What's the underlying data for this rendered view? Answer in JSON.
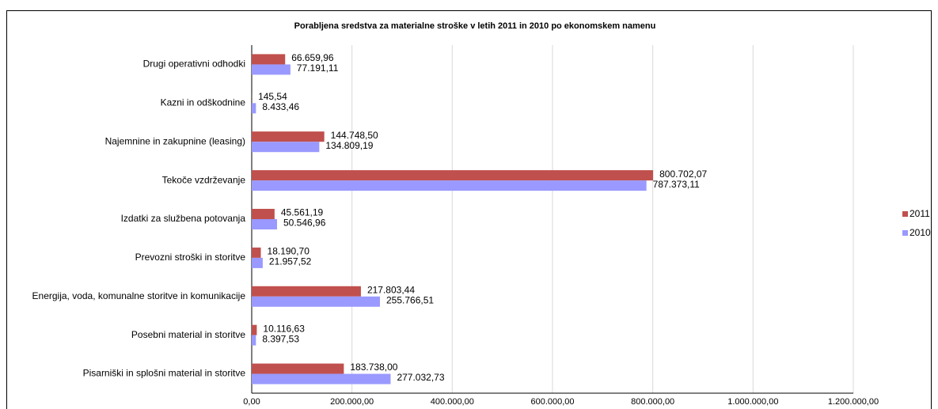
{
  "chart_data": {
    "type": "bar",
    "orientation": "horizontal",
    "title": "Porabljena sredstva za materialne stroške v letih 2011 in 2010 po ekonomskem namenu",
    "categories": [
      "Drugi operativni odhodki",
      "Kazni in odškodnine",
      "Najemnine in zakupnine (leasing)",
      "Tekoče vzdrževanje",
      "Izdatki za službena potovanja",
      "Prevozni stroški in storitve",
      "Energija, voda, komunalne storitve in komunikacije",
      "Posebni material in storitve",
      "Pisarniški in splošni material in storitve"
    ],
    "series": [
      {
        "name": "2011",
        "color": "#c0504d",
        "values": [
          66659.96,
          145.54,
          144748.5,
          800702.07,
          45561.19,
          18190.7,
          217803.44,
          10116.63,
          183738.0
        ],
        "value_labels": [
          "66.659,96",
          "145,54",
          "144.748,50",
          "800.702,07",
          "45.561,19",
          "18.190,70",
          "217.803,44",
          "10.116,63",
          "183.738,00"
        ]
      },
      {
        "name": "2010",
        "color": "#9999ff",
        "values": [
          77191.11,
          8433.46,
          134809.19,
          787373.11,
          50546.96,
          21957.52,
          255766.51,
          8397.53,
          277032.73
        ],
        "value_labels": [
          "77.191,11",
          "8.433,46",
          "134.809,19",
          "787.373,11",
          "50.546,96",
          "21.957,52",
          "255.766,51",
          "8.397,53",
          "277.032,73"
        ]
      }
    ],
    "xlim": [
      0,
      1200000
    ],
    "xticks": [
      {
        "value": 0,
        "label": "0,00"
      },
      {
        "value": 200000,
        "label": "200.000,00"
      },
      {
        "value": 400000,
        "label": "400.000,00"
      },
      {
        "value": 600000,
        "label": "600.000,00"
      },
      {
        "value": 800000,
        "label": "800.000,00"
      },
      {
        "value": 1000000,
        "label": "1.000.000,00"
      },
      {
        "value": 1200000,
        "label": "1.200.000,00"
      }
    ],
    "grid": true,
    "legend": "right"
  }
}
